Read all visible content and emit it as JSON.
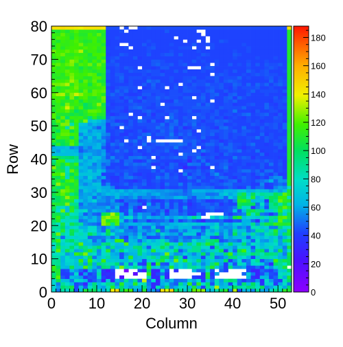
{
  "chart_data": {
    "type": "heatmap",
    "title": "",
    "xlabel": "Column",
    "ylabel": "Row",
    "xlim": [
      0,
      53
    ],
    "ylim": [
      0,
      80
    ],
    "x_ticks": [
      0,
      10,
      20,
      30,
      40,
      50
    ],
    "y_ticks": [
      0,
      10,
      20,
      30,
      40,
      50,
      60,
      70,
      80
    ],
    "colorbar": {
      "range": [
        0,
        188
      ],
      "ticks": [
        0,
        20,
        40,
        60,
        80,
        100,
        120,
        140,
        160,
        180
      ],
      "palette": "rainbow (violet-blue-cyan-green-yellow-orange-red)"
    },
    "grid": false,
    "n_columns": 53,
    "n_rows": 80,
    "cell_value_encoding": "Each string is one row (row 0 first). Each character is one column (column 0 first). Character '0' means empty/white; otherwise value = (code(char) - 48) * 2.",
    "cell_values": [
      "VJ[V_FRfacZOYvzbjkNKgJMGxuzb^S]mnpOQZbgJrEOOK]NMX^[hf",
      "VMa]eERGW^PMYgPaRMRQ`L@ZL`KOXVQfOC]UrPRZb]Z`^XcKNWXNa",
      "VJ\\WPEG?P_QW]]KhRPhWZJ@AOTJG^PiIhV`FYNREWH`QbVBUTCNXJ",
      "VdRQJXUPCGL?S?OL]N]HsHV?PKPHIJTNWDRJYM]a^IDHFMAWMFDYa",
      "bmGCROMBGFVE?C0900000ZA@Z?00000DBAeE0000000PB?QPEHZOf",
      "_gDDHW?MDG[@BA0000800i?EIA0000000AfBN00000HTJ?FMFEWZW",
      "gfEFQMHBOIUB=D00300D>a@?UF0A000OHIXF0HE0000F??HFDITSa",
      "jbQPdRRl]OJ`^LWo[V]WLhRUKMgQVQ\\]YO]gSKD_LLNEEICSLU\\f",
      "]]PUUR_MdN`]ZZ`JZHXEBdBhGFXQVQ]NSKQ^gNDQFZUIVXSI@a]Xb",
      "\\^OWVSjPkYRjSTSRQZPPETU^eXQnYgVS`NQTPOaDLWGJX]FLMk_db",
      "\\[OXRPOYdIQU\\QQFPhOQSZ^RbbLc[BSPPDS\\HJN`_TWODR[[ZUONb",
      "XXXMPjfoTXLWYONFMOP`SOMMPnSLMUOKQbK^QO`kN^^Z`]Y`_^QJe",
      "\\mTd[NO_h\\KWhLSaWRR`XQgUVSXbGM[]]NRSZcDSHdkVL_bIVMeLX",
      "UfZYaW_]V\\aWL^OORS_`QGVYcZLYQTT]]VVD_SRPLWUUFVRTZRQJe",
      "XbUWV`mQQMM^`UQRlPRN[SUTZeZTeR_Vc\\gaYNUaRS`LXUPUUXMQX",
      "ckW^bZSQTHNHTQkjFQOHOUOTZPIGNJKWQQ]_cFHLKHVPGXMLR[M`d",
      "`\\HUVUVVHIIJNIPHDOMUMEFFMGIHLHGJITQFEHQMPQQGQTPUQTKOY",
      "bn\\WcXZVc\\OUbXMLKMJRHNOITOMNHTSSEKUR]JQJcO[Q\\OMZ]dPae",
      "ZZgVd]WRWWMHdLOTJJHNMJMaHMHHNJPROHSMRLOJ]QRIL]]R[gQPg",
      "\\\\bSVWOOWWLHMRMJMEHPHHTGFROMQPPIJEJTYMKLPJMHYYSUJJ_XX",
      "]XeWd_\\LJIGpl]lLNOONQOMJNMOPRTRTQSPPUJOMTUOQ^L^ecjhfg",
      "agWYVUIKOPKpfjlTGLDJJDGHHKEMEHKGD?GGGIECGFOOHAPL^Rm_a",
      "dj`Y]^MPLPKnqnnNVXKQKPMNKOLORNT^W00WOVNJdhRUUS[U]^lme",
      "dd]fXYOGLHGbfrhOENHNKKEGLEJJGIDCLE0000GDGHKfXcJHCHaTd",
      "`WnQhZUXKPNMIMLEFOEDFHHFJAJKEHEEEEFHEEFGQFQbd^_QS[iX]",
      "dYXRg`KLLKLLOIOEEKF?0IIJEJEIELDEFFHIGFFGJaVYBKPF]]fmg",
      "gfeo]]HNKLIIHKLJCJJHBNEIEKEIDFAEFHHFHCFEEdbbbIXI]bZdZ",
      "`beegWQMPULLIMFCIHHCEHCCEHEFEIDFIGCCEFHEKhjePQPCb]nhg",
      "`bfpigMNQHNKIKQKIKNHKKHKMLLOPNIFMMPLNNHSNeaXgOT]cakjX",
      "dhmg]cLNMPKNQOQNOMONNKNOLKJIJHJMMMIIJPTNQ_eTcY][[c_mg",
      "`fomjeKROMSONPNQMOMNONMLLMLKKGJPOONNONQPOTTOPTQQMQMQf",
      "f`clffRPOOQNNKCEEFIFEEEFCFEEFEIHHHIHEEFHFDEKEHIDDKNLX",
      "dphfdhNKNRRFKEEFHEGFHDEFDIFFJEIFEGFEFGIIFFFFDDKCEGIGg",
      "dhbjlgMOPKMDFDCFEDBEGDFGEFFFDDFEIEEGFDFHICGFEHIKOGLKg",
      "dcjVh`OLUOJNECCFIJGFEDEJGIFGDEJGEGEEGIHECFHFECFDILLEg",
      "kkoZbhRRRQQDEEGEIFDCEDEFEIEFDJDGHFDHLFDEFFEFDGIFDHDDg",
      "egeXmfNOSMRNGGFFGFGEEEHEHEFE0GGFHEFIEEGEEGIIFHEIIEFEg",
      "oe`XeaQOLLNJEEFEEFGFFG0GDFHFE?CCFCC0FGJDEFEEFEGDEEFDg",
      "bhckejMOQJNHJEEEIGIHIGCDFDHGCDJIIEJFEGHFEEFDEEGEIEGDg",
      "^jjZZ]RNPQNLKGIEHHDCEIGFEEEDEF?GEIDFFFGCFEFFFGFHFEFDf",
      "gc_`b^KSLQQLFKFGEIIJHF0DGFGHGHDFJGFGCEEEJFHGCFEEEEDDg",
      "QQQQQRLOOLKNGEFFEDFFDEFFEEFE0HGGGBEFFDHFEEEEEEHCEEEEg",
      "QMSQQOGJLLKMEFIFHEGDEGEFFHEDFFF0FJGFDFFHGIEFEIDEEFDDg",
      "NOPRKMHMJOPGDFEGFFF0FGFEFGFJFEFG0DFFDGHHFECEFEEEEEGDg",
      "bhbemfQNNNPKEIGIFEGEIEFGHFHHIHEHEFHHFHEHFFEGIEEDEGGFg",
      "hccglgLNOMLMFDGE0GIEG0H000000GGHFDEGFCEFEEEFEEEGEFEGf",
      "ckii`iQKSLQIGDEEGEEIF0EEEGHGDGFFEHEEDFGEFEEFFIEGFEFFg",
      "eimmkjKPNPRLJEFDCFEFHIEGGFJEHFHEEGFHEFGEFFGEEEHDFEEEg",
      "fbllbhQSLONMEEFGDDEGCEFEHFHDFFGD0GFGGFGFHEGGFEFEEEFEf",
      "egjZojOOOKGNEFD0GFEEEFFIGFIEGBDGFGFECHIFEEIEEDGEFGEHg",
      "dhooZhSRMPNMDHIGEGEFFFFFIEHHEHFIEFEEGGDEFEEEGFEGFGEHg",
      "fmfndkeoRTQNHGCEDGEIGDHDDHFIEFGHFDFFHGHFEEEFEFDEEFFDf",
      "ldm`jijf_hcdFHGGGEF0FFEFE0IFEGF0FGEGEFCEFEDFEEFEEGFEg",
      "lgffdfdgjkgfECEFF0EEDGCFFEHFEEFFGFEFGEFFEFHIEFGHEDGDg",
      "fjjmhaehmmlhDFFECFEEGHFEEFFGEFGEEFFEGEEFJEEEDGEEFFDEg",
      "hiltmglcdgjgEEFFDGHIFEEFFFEEEFFGGGGFEGFFFFHEEEEHFEFFg",
      "gieoijhaeipdFDEEEFGFFFEG0FFGGFFFHEHFEEFFDEEFGEEHEDFEg",
      "hkghhkdjghgmEEFFDHEDGFFGEDDHFFFFFGE0EEGFHEEEEEEEDFFGg",
      "kjkdofklgfinEFFDGFFHDFFHFGFFEGG0FHEGEEGHDHFEEEEEEGEFf",
      "mqriotplkmkgFHFGEDDEGGEFFEFFFEEEEGEGHEDGHEEGEEEFEEEDg",
      "ihjmllgmfmlmFEHFHEFDFFFFEEFFEGGFFEGHEEGEFEEFHEFFFFEGg",
      "jfihknijiijlEDFGGFF0DEGEF0EGEGFFEEFGFGEDGEFFFGEEFEEDg",
      "nnorhmjkdkmgGEEEEFEEGEHEFEEF0FEGFFHFFGEEHGEHEHFHEGHFf",
      "ikjlqmemhmfeEEFGDFEEEIGHEEFDEFGEFFEEGEGHGFEEEEEEHEGFf",
      "hghhojjggllgFEFHEFFFEFEEEEFEEFFGEEFFGEFFFHEFEEEFGEFEg",
      "giglnkjkmldfFEGGEEEEFEFFGEEEEEEEEEE0FGFEEEFEFGFGFFEEg",
      "ijjmkjgjhfhhGEFEEGFFFGFFDEEGEGEEEFEFEEFEGEEHFEFGEEEFg",
      "khjhjhdhfikhEEFEGFE0EEDEGGEEEE000FGGEEEEEEEFEEEFGFEEg",
      "kmjmogljngnhFFGEEEEEEEGHFFGEFGEEEEF0FEEGEFEGEGEGFFGEg",
      "gifkpmgkfkgmDGEEEEEEEEGGFEEEFEEGEFEEFEEEEEEFEEEFEEEEf",
      "hkhjjlkhggkgEFGEEEGDEEEEEEEEEEEEFEEEEEEEFEEEEFEEEFEEg",
      "jlnihjiiekkkDEEGFEEEEGEEFGGEGEEEEGFEEEEEGFEEEEEEEEEEg",
      "nkkmkmrgjjgiEEEEEEEEEFEEEEFEEEEEFEEEEEEEFEEFEEEEEEEEg",
      "gkgjkkjljkhjEEFEF0EEEFGEEEEEFFF0EE0FEEEEEEEFEEEEEEEEg",
      "gkiijknhjjjfDEE00EEEGEFEEEFEEEEGEEFFEEEEEEFEEEEEEEEEg",
      "ifjijlhfgkgjDEEEEEEEEFEEEEEEE0EE0E0EEGFEEEEEEEEEEEEEg",
      "hlkjfkihjkhhEEFEEEEEEEEEEEE0EEEEEE0EEEEEEEEEEEEEEEEEg",
      "jimigjggkhmfEEEEEEEEEEEEEEEEEEEEE0EEEEEEEEEEEEEEEEEEg",
      "ffifilhhhhfhEEEF0EEEEEEEEGEEEEEE00EEEEEEEEEEEEEEEEEEg",
      "xxyxxwvxxxxwFFF0F00FFGFFFFFFFFFFFFFFFFFFFFFFFFFFFFFFx"
    ]
  }
}
